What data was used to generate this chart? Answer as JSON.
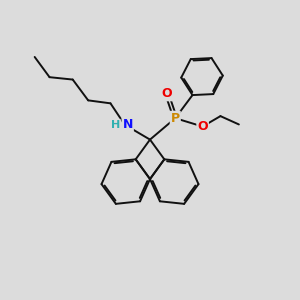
{
  "background_color": "#dcdcdc",
  "atom_colors": {
    "N": "#1010ff",
    "H": "#30b0b0",
    "P": "#cc8800",
    "O": "#ee0000",
    "C": "#111111"
  },
  "line_color": "#111111",
  "line_width": 1.4,
  "figsize": [
    3.0,
    3.0
  ],
  "dpi": 100,
  "xlim": [
    0,
    10
  ],
  "ylim": [
    0,
    10
  ]
}
